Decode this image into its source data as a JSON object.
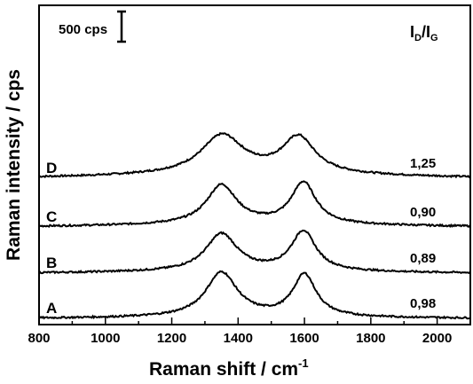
{
  "chart_data": {
    "type": "line",
    "xlabel": "Raman shift / cm",
    "xlabel_sup": "-1",
    "ylabel": "Raman intensity / cps",
    "xlim": [
      800,
      2100
    ],
    "xticks": [
      800,
      1000,
      1200,
      1400,
      1600,
      1800,
      2000
    ],
    "scale_bar": {
      "label": "500 cps",
      "value_cps": 500
    },
    "ratio_header": {
      "base": "I",
      "sub1": "D",
      "slash": "/I",
      "sub2": "G"
    },
    "series": [
      {
        "name": "D",
        "ratio": "1,25",
        "offset_cps": 2350,
        "baseline_cps": 80,
        "bg_slope": 60,
        "d_peak": {
          "center": 1352,
          "height": 640,
          "width": 155
        },
        "g_peak": {
          "center": 1582,
          "height": 600,
          "width": 120
        }
      },
      {
        "name": "C",
        "ratio": "0,90",
        "offset_cps": 1600,
        "baseline_cps": 20,
        "bg_slope": 40,
        "d_peak": {
          "center": 1350,
          "height": 650,
          "width": 110
        },
        "g_peak": {
          "center": 1597,
          "height": 690,
          "width": 90
        }
      },
      {
        "name": "B",
        "ratio": "0,89",
        "offset_cps": 850,
        "baseline_cps": 0,
        "bg_slope": 30,
        "d_peak": {
          "center": 1350,
          "height": 620,
          "width": 115
        },
        "g_peak": {
          "center": 1597,
          "height": 660,
          "width": 90
        }
      },
      {
        "name": "A",
        "ratio": "0,98",
        "offset_cps": 100,
        "baseline_cps": 0,
        "bg_slope": 20,
        "d_peak": {
          "center": 1350,
          "height": 740,
          "width": 115
        },
        "g_peak": {
          "center": 1600,
          "height": 700,
          "width": 85
        }
      }
    ]
  }
}
